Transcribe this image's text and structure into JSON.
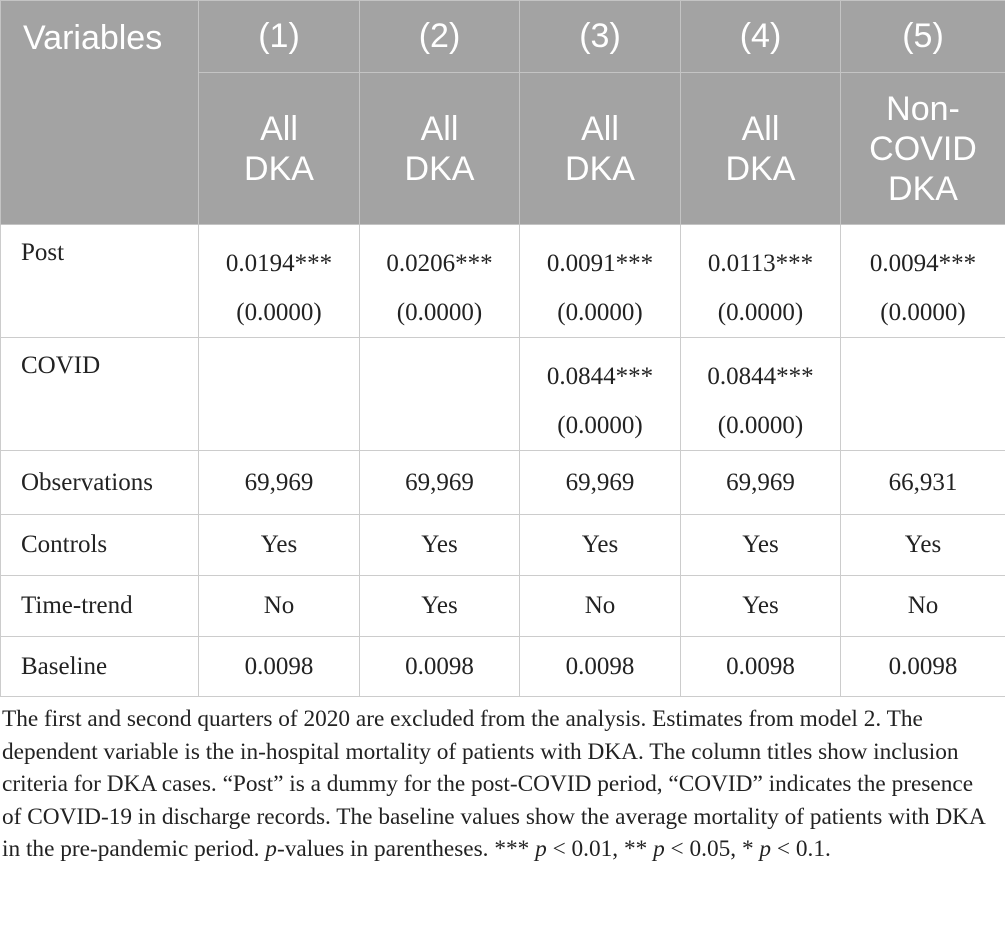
{
  "header": {
    "columns": [
      "Variables",
      "(1)",
      "(2)",
      "(3)",
      "(4)",
      "(5)"
    ],
    "subheaders": [
      null,
      "All DKA",
      "All DKA",
      "All DKA",
      "All DKA",
      "Non-COVID DKA"
    ]
  },
  "table": {
    "rows": [
      {
        "label": "Post",
        "cells": [
          [
            "0.0194***",
            "(0.0000)"
          ],
          [
            "0.0206***",
            "(0.0000)"
          ],
          [
            "0.0091***",
            "(0.0000)"
          ],
          [
            "0.0113***",
            "(0.0000)"
          ],
          [
            "0.0094***",
            "(0.0000)"
          ]
        ]
      },
      {
        "label": "COVID",
        "cells": [
          null,
          null,
          [
            "0.0844***",
            "(0.0000)"
          ],
          [
            "0.0844***",
            "(0.0000)"
          ],
          null
        ]
      },
      {
        "label": "Observations",
        "cells": [
          [
            "69,969"
          ],
          [
            "69,969"
          ],
          [
            "69,969"
          ],
          [
            "69,969"
          ],
          [
            "66,931"
          ]
        ]
      },
      {
        "label": "Controls",
        "cells": [
          [
            "Yes"
          ],
          [
            "Yes"
          ],
          [
            "Yes"
          ],
          [
            "Yes"
          ],
          [
            "Yes"
          ]
        ]
      },
      {
        "label": "Time-trend",
        "cells": [
          [
            "No"
          ],
          [
            "Yes"
          ],
          [
            "No"
          ],
          [
            "Yes"
          ],
          [
            "No"
          ]
        ]
      },
      {
        "label": "Baseline",
        "cells": [
          [
            "0.0098"
          ],
          [
            "0.0098"
          ],
          [
            "0.0098"
          ],
          [
            "0.0098"
          ],
          [
            "0.0098"
          ]
        ]
      }
    ]
  },
  "note": {
    "parts": [
      "The first and second quarters of 2020 are excluded from the analysis. Estimates from model 2. The dependent variable is the in-hospital mortality of patients with DKA. The column titles show inclusion criteria for DKA cases. “Post” is a dummy for the post-COVID period, “COVID” indicates the presence of COVID-19 in discharge records. The baseline values show the average mortality of patients with DKA in the pre-pandemic period. ",
      "p",
      "-values in parentheses. *** ",
      "p",
      " < 0.01, ** ",
      "p",
      " < 0.05, * ",
      "p",
      " < 0.1."
    ]
  }
}
